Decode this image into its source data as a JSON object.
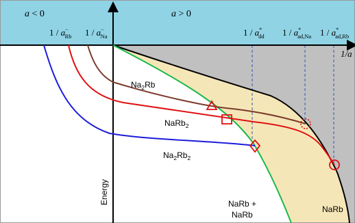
{
  "colors": {
    "header": "#8fd3e5",
    "shade_gray": "#c0c0c0",
    "shade_tan": "#f5e6b8",
    "blue": "#1b1bdc",
    "red": "#e01010",
    "brown": "#7a3a2a",
    "green": "#18b84a",
    "black": "#000000",
    "dashed": "#3355aa"
  },
  "header": {
    "neg_region": {
      "a": "a",
      "rel": " < 0"
    },
    "pos_region": {
      "a": "a",
      "rel": " > 0"
    },
    "one_over": "1 / ",
    "x_axis_end": "1/a",
    "markers": {
      "rb": {
        "a": "a",
        "sup": "−",
        "sub": "Rb"
      },
      "na": {
        "a": "a",
        "sup": "−",
        "sub": "Na"
      },
      "dd": {
        "a": "a",
        "sup": "*",
        "sub": "dd"
      },
      "ad_na": {
        "a": "a",
        "sup": "*",
        "sub": "ad,Na"
      },
      "ad_rb": {
        "a": "a",
        "sup": "*",
        "sub": "ad,Rb"
      }
    }
  },
  "curve_labels": {
    "na2rb": {
      "a": "Na",
      "n1": "2",
      "b": "Rb"
    },
    "narb2": {
      "a": "NaRb",
      "n1": "2"
    },
    "na2rb2": {
      "a": "Na",
      "n1": "2",
      "b": "Rb",
      "n2": "2"
    },
    "narb_plus_line1": "NaRb +",
    "narb_plus_line2": "NaRb",
    "narb": "NaRb"
  },
  "y_axis_label": "Energy"
}
